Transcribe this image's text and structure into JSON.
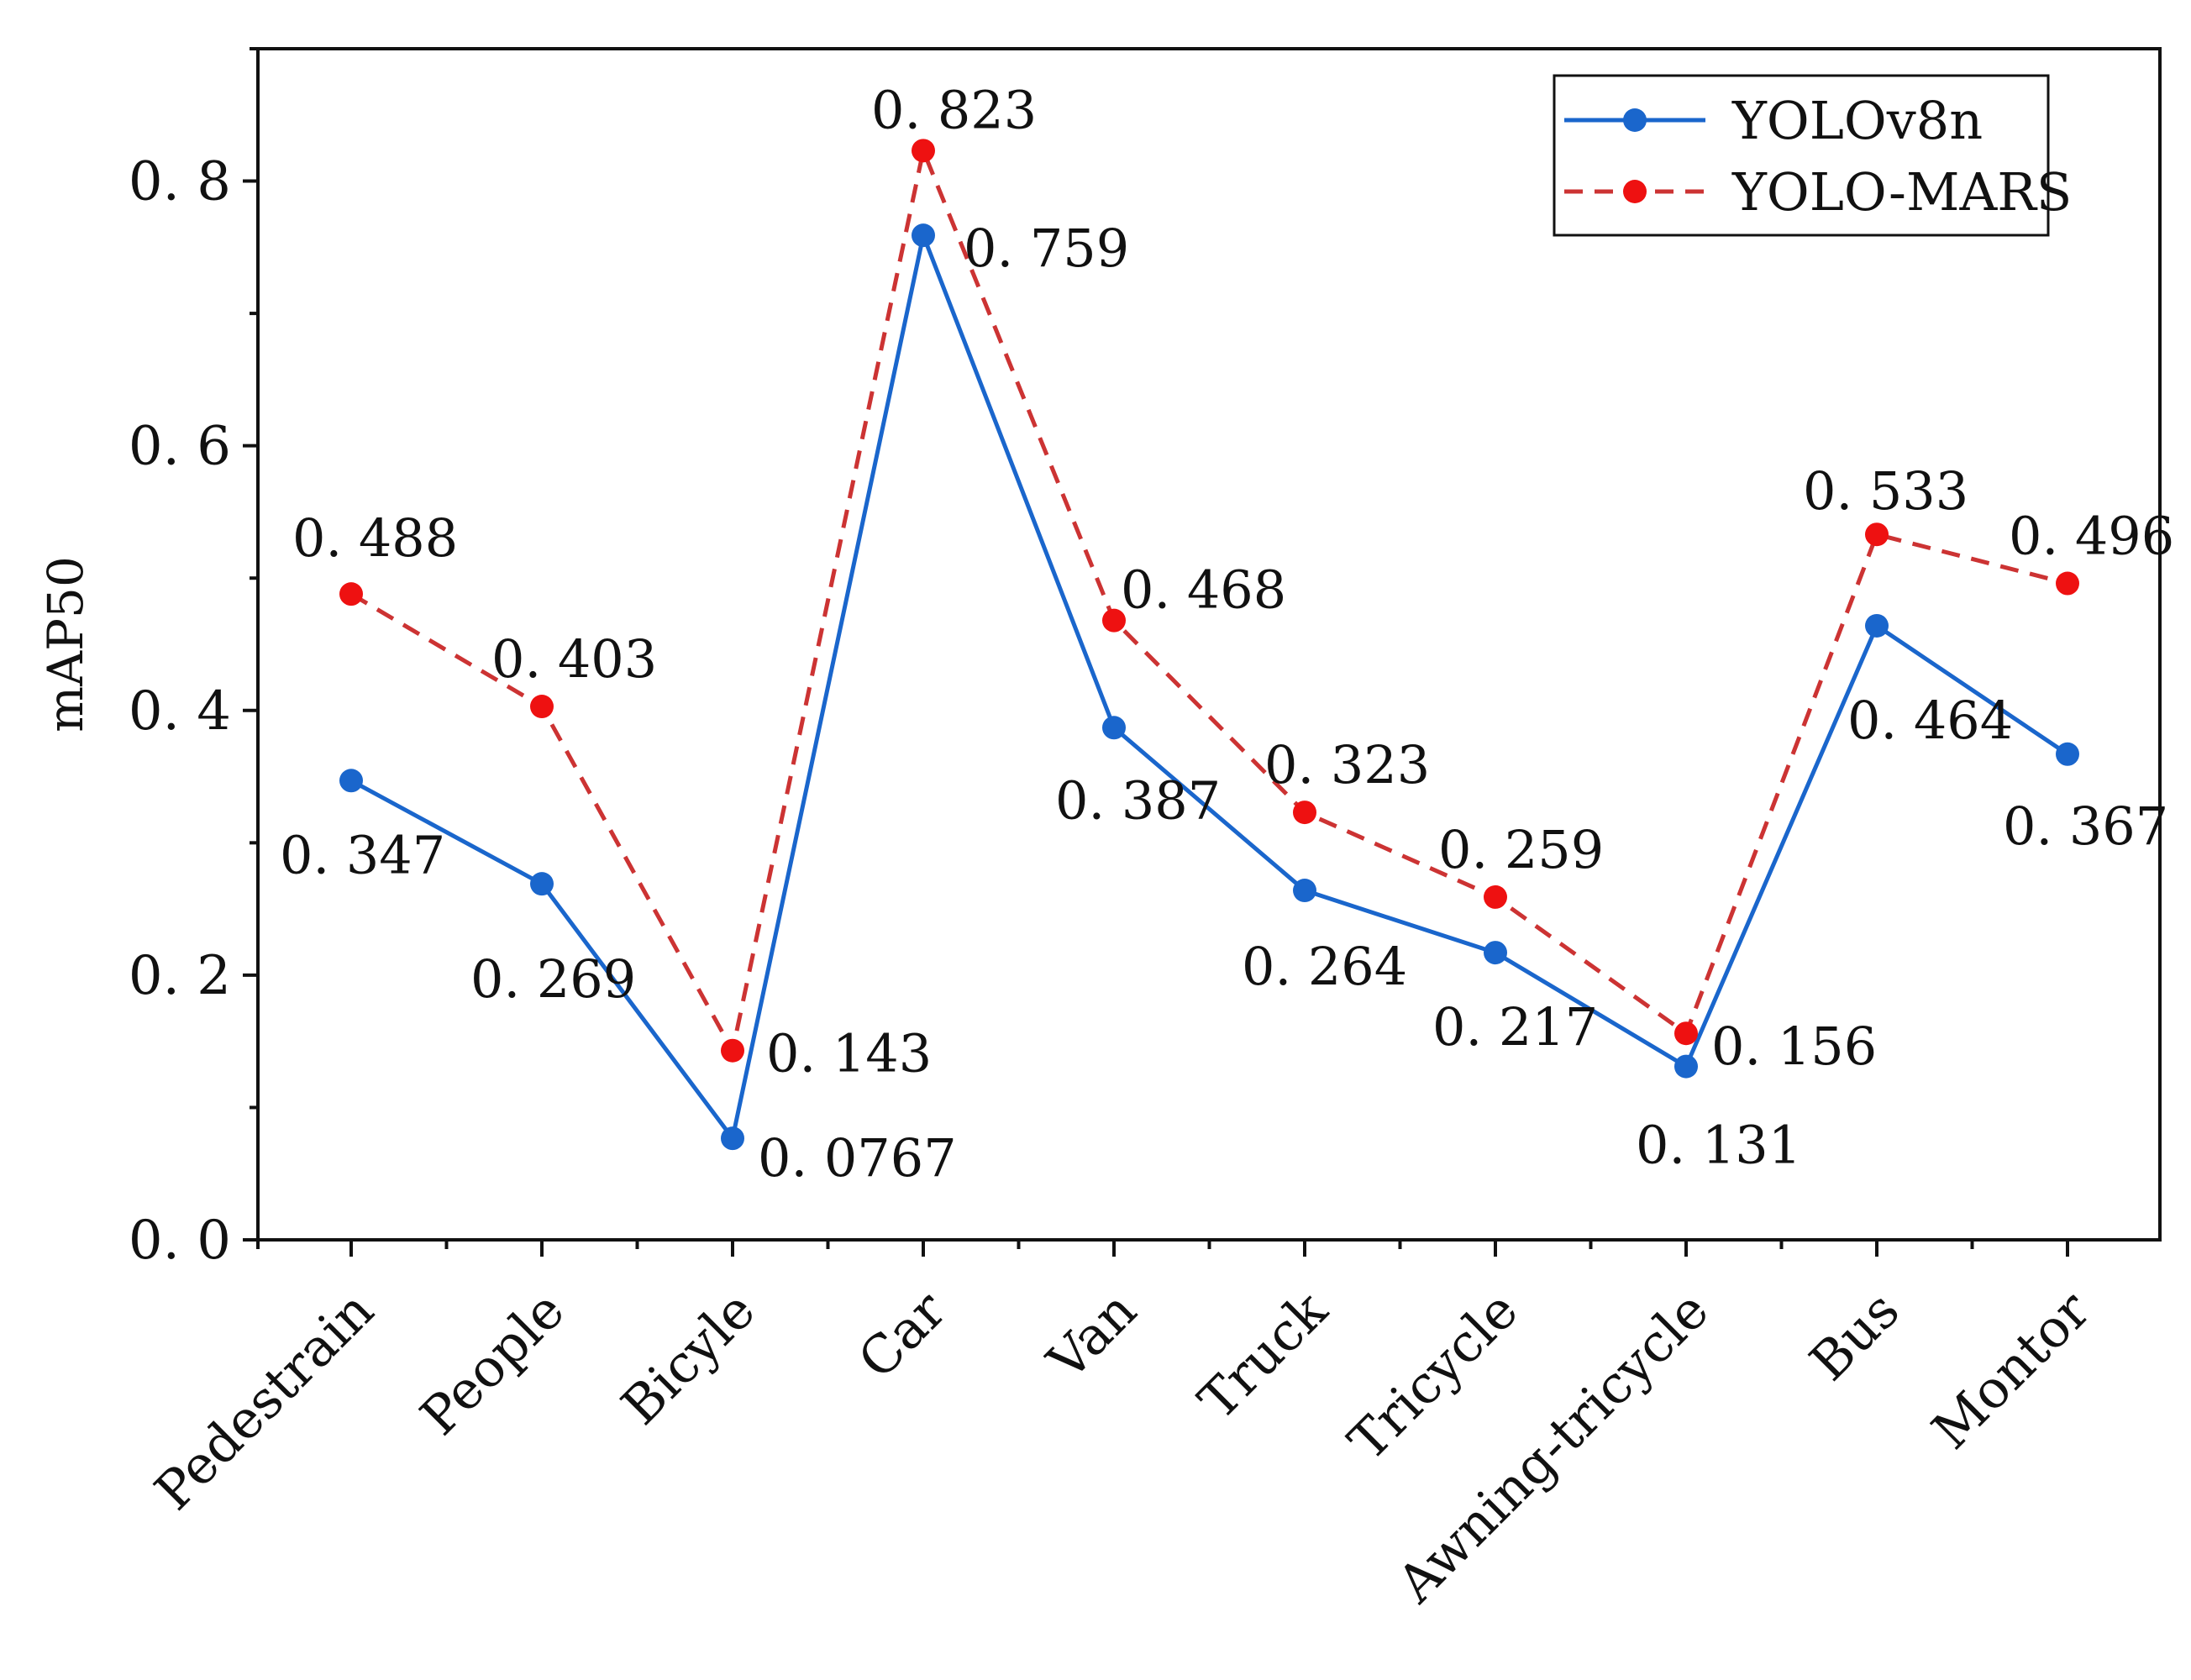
{
  "chart_data": {
    "type": "line",
    "title": "",
    "xlabel": "",
    "ylabel": "mAP50",
    "ylim": [
      0,
      0.9
    ],
    "yticks": [
      0.0,
      0.2,
      0.4,
      0.6,
      0.8
    ],
    "ytick_labels": [
      "0. 0",
      "0. 2",
      "0. 4",
      "0. 6",
      "0. 8"
    ],
    "grid": false,
    "legend_position": "top-right",
    "categories": [
      "Pedestrain",
      "People",
      "Bicyle",
      "Car",
      "Van",
      "Truck",
      "Tricycle",
      "Awning-tricycle",
      "Bus",
      "Montor"
    ],
    "series": [
      {
        "name": "YOLOv8n",
        "color": "#1a66cc",
        "line_style": "solid",
        "values": [
          0.347,
          0.269,
          0.0767,
          0.759,
          0.387,
          0.264,
          0.217,
          0.131,
          0.464,
          0.367
        ],
        "labels": [
          "0. 347",
          "0. 269",
          "0. 0767",
          "0. 759",
          "0. 387",
          "0. 264",
          "0. 217",
          "0. 131",
          "0. 464",
          "0. 367"
        ]
      },
      {
        "name": "YOLO-MARS",
        "color": "#cc3333",
        "marker_color": "#ee1111",
        "line_style": "dashed",
        "values": [
          0.488,
          0.403,
          0.143,
          0.823,
          0.468,
          0.323,
          0.259,
          0.156,
          0.533,
          0.496
        ],
        "labels": [
          "0. 488",
          "0. 403",
          "0. 143",
          "0. 823",
          "0. 468",
          "0. 323",
          "0. 259",
          "0. 156",
          "0. 533",
          "0. 496"
        ]
      }
    ]
  }
}
